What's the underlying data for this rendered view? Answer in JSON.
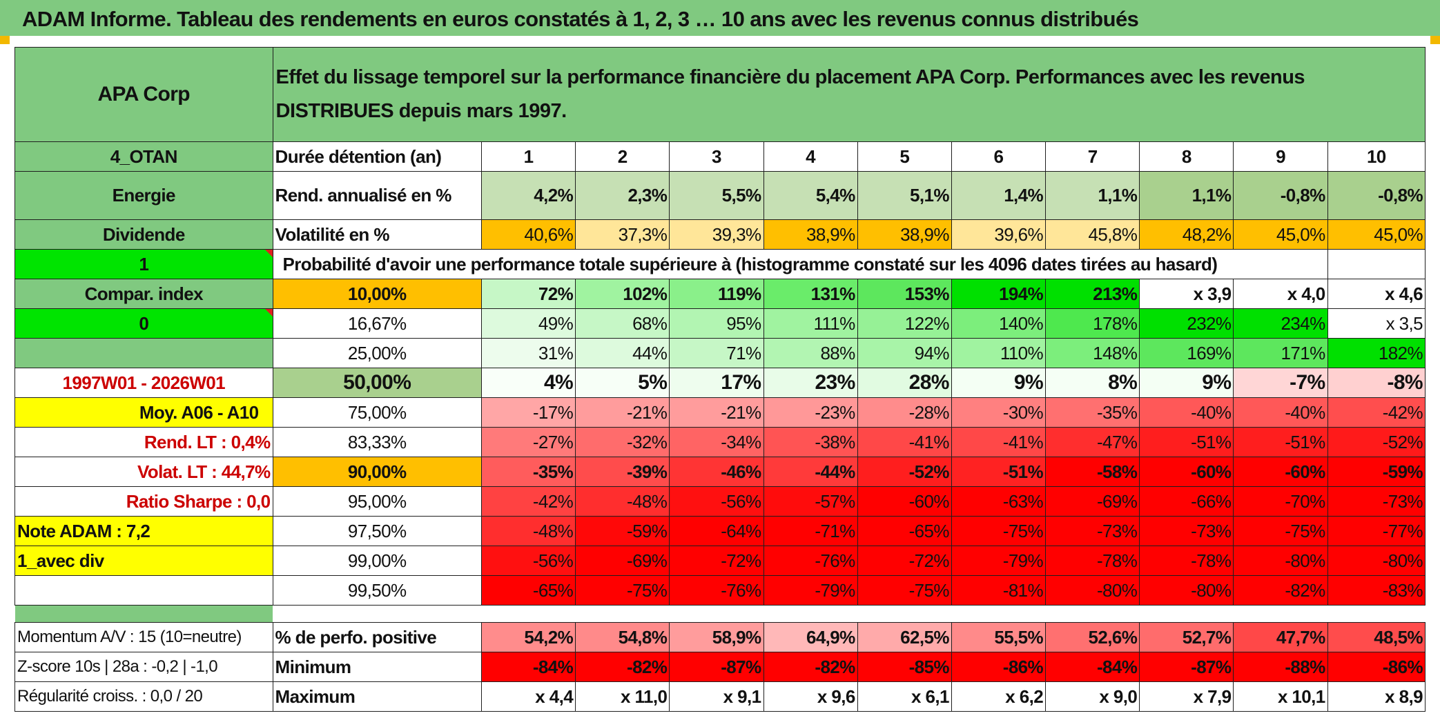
{
  "title": "ADAM Informe. Tableau des rendements en euros constatés à 1, 2, 3 … 10 ans avec les revenus connus distribués",
  "header": {
    "name": "APA Corp",
    "description": "Effet du lissage temporel sur la performance financière du placement APA Corp. Performances avec les revenus DISTRIBUES depuis mars 1997."
  },
  "side": {
    "code": "4_OTAN",
    "sector": "Energie",
    "dividend_label": "Dividende",
    "select1": "1",
    "compar_index": "Compar. index",
    "select2": "0",
    "period": "1997W01 - 2026W01",
    "moy": "Moy. A06 - A10",
    "rend_lt": "Rend. LT :    0,4%",
    "volat_lt": "Volat. LT :    44,7%",
    "sharpe": "Ratio Sharpe :    0,0",
    "note": "Note ADAM : 7,2",
    "mode": "1_avec div",
    "momentum": "Momentum A/V : 15 (10=neutre)",
    "zscore": "Z-score 10s | 28a : -0,2 | -1,0",
    "regularite": "Régularité croiss. : 0,0 / 20"
  },
  "duration": {
    "label": "Durée détention (an)",
    "years": [
      "1",
      "2",
      "3",
      "4",
      "5",
      "6",
      "7",
      "8",
      "9",
      "10"
    ]
  },
  "rend": {
    "label": "Rend. annualisé en %",
    "values": [
      "4,2%",
      "2,3%",
      "5,5%",
      "5,4%",
      "5,1%",
      "1,4%",
      "1,1%",
      "1,1%",
      "-0,8%",
      "-0,8%"
    ]
  },
  "vol": {
    "label": "Volatilité en %",
    "values": [
      "40,6%",
      "37,3%",
      "39,3%",
      "38,9%",
      "38,9%",
      "39,6%",
      "45,8%",
      "48,2%",
      "45,0%",
      "45,0%"
    ]
  },
  "prob_title": "Probabilité d'avoir une performance totale supérieure à (histogramme constaté sur les 4096 dates tirées au hasard)",
  "quantiles": [
    {
      "label": "10,00%",
      "values": [
        "72%",
        "102%",
        "119%",
        "131%",
        "153%",
        "194%",
        "213%",
        "x 3,9",
        "x 4,0",
        "x 4,6"
      ]
    },
    {
      "label": "16,67%",
      "values": [
        "49%",
        "68%",
        "95%",
        "111%",
        "122%",
        "140%",
        "178%",
        "232%",
        "234%",
        "x 3,5"
      ]
    },
    {
      "label": "25,00%",
      "values": [
        "31%",
        "44%",
        "71%",
        "88%",
        "94%",
        "110%",
        "148%",
        "169%",
        "171%",
        "182%"
      ]
    },
    {
      "label": "50,00%",
      "values": [
        "4%",
        "5%",
        "17%",
        "23%",
        "28%",
        "9%",
        "8%",
        "9%",
        "-7%",
        "-8%"
      ]
    },
    {
      "label": "75,00%",
      "values": [
        "-17%",
        "-21%",
        "-21%",
        "-23%",
        "-28%",
        "-30%",
        "-35%",
        "-40%",
        "-40%",
        "-42%"
      ]
    },
    {
      "label": "83,33%",
      "values": [
        "-27%",
        "-32%",
        "-34%",
        "-38%",
        "-41%",
        "-41%",
        "-47%",
        "-51%",
        "-51%",
        "-52%"
      ]
    },
    {
      "label": "90,00%",
      "values": [
        "-35%",
        "-39%",
        "-46%",
        "-44%",
        "-52%",
        "-51%",
        "-58%",
        "-60%",
        "-60%",
        "-59%"
      ]
    },
    {
      "label": "95,00%",
      "values": [
        "-42%",
        "-48%",
        "-56%",
        "-57%",
        "-60%",
        "-63%",
        "-69%",
        "-66%",
        "-70%",
        "-73%"
      ]
    },
    {
      "label": "97,50%",
      "values": [
        "-48%",
        "-59%",
        "-64%",
        "-71%",
        "-65%",
        "-75%",
        "-73%",
        "-73%",
        "-75%",
        "-77%"
      ]
    },
    {
      "label": "99,00%",
      "values": [
        "-56%",
        "-69%",
        "-72%",
        "-76%",
        "-72%",
        "-79%",
        "-78%",
        "-78%",
        "-80%",
        "-80%"
      ]
    },
    {
      "label": "99,50%",
      "values": [
        "-65%",
        "-75%",
        "-76%",
        "-79%",
        "-75%",
        "-81%",
        "-80%",
        "-80%",
        "-82%",
        "-83%"
      ]
    }
  ],
  "pos": {
    "label": "% de perfo. positive",
    "values": [
      "54,2%",
      "54,8%",
      "58,9%",
      "64,9%",
      "62,5%",
      "55,5%",
      "52,6%",
      "52,7%",
      "47,7%",
      "48,5%"
    ]
  },
  "min": {
    "label": "Minimum",
    "values": [
      "-84%",
      "-82%",
      "-87%",
      "-82%",
      "-85%",
      "-86%",
      "-84%",
      "-87%",
      "-88%",
      "-86%"
    ]
  },
  "max": {
    "label": "Maximum",
    "values": [
      "x 4,4",
      "x 11,0",
      "x 9,1",
      "x 9,6",
      "x 6,1",
      "x 6,2",
      "x 9,0",
      "x 7,9",
      "x 10,1",
      "x 8,9"
    ]
  },
  "colors": {
    "header_green": "#80c980",
    "bright_green": "#00e400",
    "yellow": "#ffff00",
    "orange": "#ffbf00",
    "red_text": "#cc0000",
    "rend_cells": [
      "#c6e0b4",
      "#c6e0b4",
      "#c6e0b4",
      "#c6e0b4",
      "#c6e0b4",
      "#c6e0b4",
      "#c6e0b4",
      "#a9d08e",
      "#a9d08e",
      "#a9d08e"
    ],
    "vol_cells": [
      "#ffbf00",
      "#ffe699",
      "#ffe699",
      "#ffbf00",
      "#ffbf00",
      "#ffe699",
      "#ffe699",
      "#ffbf00",
      "#ffbf00",
      "#ffbf00"
    ],
    "quantile_cells": [
      [
        "#c6f7c6",
        "#a0f3a0",
        "#8af08a",
        "#6aec6a",
        "#5de75d",
        "#00e000",
        "#00e000",
        "#ffffff",
        "#ffffff",
        "#ffffff"
      ],
      [
        "#ddfadd",
        "#c6f7c6",
        "#b2f5b2",
        "#a0f3a0",
        "#96f196",
        "#7cee7c",
        "#4ee84e",
        "#00e000",
        "#00e000",
        "#ffffff"
      ],
      [
        "#edfced",
        "#ddfadd",
        "#c6f7c6",
        "#b2f5b2",
        "#a8f4a8",
        "#a0f3a0",
        "#7cee7c",
        "#5de75d",
        "#5de75d",
        "#00e000"
      ],
      [
        "#f9fff9",
        "#f7fff7",
        "#eefdee",
        "#e8fce8",
        "#e1fbe1",
        "#f4fff4",
        "#f5fff5",
        "#f4fff4",
        "#ffd6d6",
        "#ffd0d0"
      ],
      [
        "#ffa6a6",
        "#ff9c9c",
        "#ff9c9c",
        "#ff9898",
        "#ff8c8c",
        "#ff8080",
        "#ff7070",
        "#ff5858",
        "#ff5858",
        "#ff4e4e"
      ],
      [
        "#ff7a7a",
        "#ff6c6c",
        "#ff6464",
        "#ff5454",
        "#ff4848",
        "#ff4848",
        "#ff2e2e",
        "#ff1e1e",
        "#ff1e1e",
        "#ff1a1a"
      ],
      [
        "#ff5c5c",
        "#ff4c4c",
        "#ff3434",
        "#ff3a3a",
        "#ff1e1e",
        "#ff2222",
        "#ff0000",
        "#ff0000",
        "#ff0000",
        "#ff0000"
      ],
      [
        "#ff4242",
        "#ff2e2e",
        "#ff1010",
        "#ff0c0c",
        "#ff0000",
        "#ff0000",
        "#ff0000",
        "#ff0000",
        "#ff0000",
        "#ff0000"
      ],
      [
        "#ff2e2e",
        "#ff0808",
        "#ff0000",
        "#ff0000",
        "#ff0000",
        "#ff0000",
        "#ff0000",
        "#ff0000",
        "#ff0000",
        "#ff0000"
      ],
      [
        "#ff1010",
        "#ff0000",
        "#ff0000",
        "#ff0000",
        "#ff0000",
        "#ff0000",
        "#ff0000",
        "#ff0000",
        "#ff0000",
        "#ff0000"
      ],
      [
        "#ff0000",
        "#ff0000",
        "#ff0000",
        "#ff0000",
        "#ff0000",
        "#ff0000",
        "#ff0000",
        "#ff0000",
        "#ff0000",
        "#ff0000"
      ]
    ],
    "pos_cells": [
      "#ff8c8c",
      "#ff8a8a",
      "#ff9c9c",
      "#ffb8b8",
      "#ffaaaa",
      "#ff8a8a",
      "#ff7070",
      "#ff6c6c",
      "#ff4848",
      "#ff4c4c"
    ],
    "min_cells": [
      "#ff0000",
      "#ff0000",
      "#ff0000",
      "#ff0000",
      "#ff0000",
      "#ff0000",
      "#ff0000",
      "#ff0000",
      "#ff0000",
      "#ff0000"
    ]
  }
}
